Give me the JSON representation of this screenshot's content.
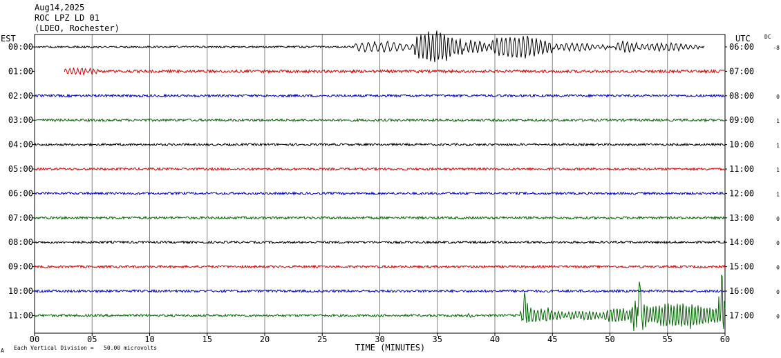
{
  "header": {
    "date": "Aug14,2025",
    "station": "ROC LPZ LD 01",
    "network": "(LDEO, Rochester)"
  },
  "left_axis_title": "EST",
  "right_axis_title": "UTC",
  "dc_title": "DC",
  "footer": {
    "scale_note": "Each Vertical Division =   50.00 microvolts",
    "corner_mark": "A"
  },
  "colors": {
    "black": "#000000",
    "red": "#dd0000",
    "blue": "#0000cc",
    "green": "#006600",
    "grid": "#808080"
  },
  "chart_data": {
    "type": "line",
    "title": "",
    "xlabel": "TIME (MINUTES)",
    "ylabel": "",
    "xlim": [
      0,
      60
    ],
    "x_ticks": [
      0,
      5,
      10,
      15,
      20,
      25,
      30,
      35,
      40,
      45,
      50,
      55,
      60
    ],
    "x_tick_labels": [
      "00",
      "05",
      "10",
      "15",
      "20",
      "25",
      "30",
      "35",
      "40",
      "45",
      "50",
      "55",
      "60"
    ],
    "grid": true,
    "rows": [
      {
        "est": "00:00",
        "utc": "06:00",
        "dc": "-8",
        "color": "black",
        "start_min": 0,
        "end_min": 58.2,
        "noise": 1.3,
        "bursts": [
          {
            "from": 27.8,
            "to": 33.0,
            "amp": 7,
            "period": 0.55
          },
          {
            "from": 33.0,
            "to": 37.2,
            "amp": 21,
            "period": 0.34
          },
          {
            "from": 37.2,
            "to": 39.7,
            "amp": 8,
            "period": 0.4
          },
          {
            "from": 39.7,
            "to": 45.0,
            "amp": 15,
            "period": 0.38
          },
          {
            "from": 45.0,
            "to": 49.8,
            "amp": 5,
            "period": 0.45
          },
          {
            "from": 50.5,
            "to": 52.5,
            "amp": 8,
            "period": 0.4
          },
          {
            "from": 52.5,
            "to": 57.8,
            "amp": 5,
            "period": 0.42
          }
        ]
      },
      {
        "est": "01:00",
        "utc": "07:00",
        "dc": "",
        "color": "red",
        "start_min": 2.6,
        "end_min": 60,
        "noise": 2.0,
        "bursts": [
          {
            "from": 2.6,
            "to": 5.5,
            "amp": 5,
            "period": 0.35
          }
        ]
      },
      {
        "est": "02:00",
        "utc": "08:00",
        "dc": "0",
        "color": "blue",
        "start_min": 0,
        "end_min": 60,
        "noise": 1.8,
        "bursts": []
      },
      {
        "est": "03:00",
        "utc": "09:00",
        "dc": "1",
        "color": "green",
        "start_min": 0,
        "end_min": 60,
        "noise": 1.8,
        "bursts": []
      },
      {
        "est": "04:00",
        "utc": "10:00",
        "dc": "1",
        "color": "black",
        "start_min": 0,
        "end_min": 60,
        "noise": 1.6,
        "bursts": []
      },
      {
        "est": "05:00",
        "utc": "11:00",
        "dc": "1",
        "color": "red",
        "start_min": 0,
        "end_min": 60,
        "noise": 1.7,
        "bursts": []
      },
      {
        "est": "06:00",
        "utc": "12:00",
        "dc": "1",
        "color": "blue",
        "start_min": 0,
        "end_min": 60,
        "noise": 1.7,
        "bursts": []
      },
      {
        "est": "07:00",
        "utc": "13:00",
        "dc": "0",
        "color": "green",
        "start_min": 0,
        "end_min": 60,
        "noise": 1.8,
        "bursts": []
      },
      {
        "est": "08:00",
        "utc": "14:00",
        "dc": "0",
        "color": "black",
        "start_min": 0,
        "end_min": 60,
        "noise": 1.6,
        "bursts": []
      },
      {
        "est": "09:00",
        "utc": "15:00",
        "dc": "0",
        "color": "red",
        "start_min": 0,
        "end_min": 60,
        "noise": 1.7,
        "bursts": []
      },
      {
        "est": "10:00",
        "utc": "16:00",
        "dc": "0",
        "color": "blue",
        "start_min": 0,
        "end_min": 60,
        "noise": 1.8,
        "bursts": []
      },
      {
        "est": "11:00",
        "utc": "17:00",
        "dc": "0",
        "color": "green",
        "start_min": 0,
        "end_min": 60,
        "noise": 1.7,
        "bursts": [
          {
            "from": 37.6,
            "to": 37.9,
            "amp": 4,
            "period": 0.3
          },
          {
            "from": 42.2,
            "to": 46.0,
            "amp": 10,
            "period": 0.3
          },
          {
            "from": 46.0,
            "to": 49.6,
            "amp": 6,
            "period": 0.3
          },
          {
            "from": 49.6,
            "to": 51.8,
            "amp": 10,
            "period": 0.28
          },
          {
            "from": 51.8,
            "to": 53.5,
            "amp": 22,
            "period": 0.26
          },
          {
            "from": 53.5,
            "to": 60.0,
            "amp": 18,
            "period": 0.26
          }
        ],
        "spikes": [
          {
            "min": 52.6,
            "amp": 62
          },
          {
            "min": 42.6,
            "amp": 30
          },
          {
            "min": 59.7,
            "amp": 50
          }
        ]
      }
    ]
  }
}
